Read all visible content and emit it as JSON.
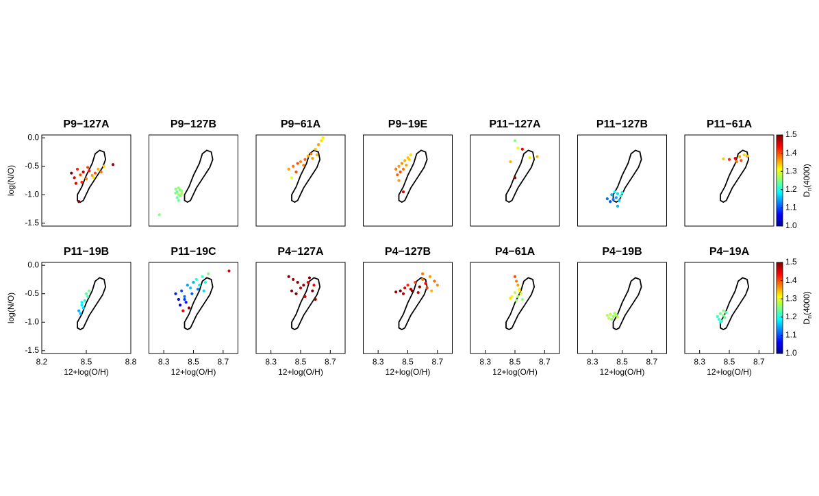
{
  "chart_data": [
    {
      "type": "scatter",
      "title": "P9−127A",
      "ylabel": "log(N/O)",
      "xlim": [
        8.2,
        8.8
      ],
      "ylim": [
        -1.55,
        0.05
      ],
      "yticks": [
        {
          "value": 0,
          "label": "0.0"
        },
        -0.5,
        {
          "value": -1,
          "label": "-1.0"
        },
        -1.5
      ],
      "x": [
        8.4,
        8.42,
        8.44,
        8.46,
        8.48,
        8.5,
        8.52,
        8.54,
        8.56,
        8.58,
        8.6,
        8.62,
        8.45,
        8.47,
        8.55,
        8.68,
        8.43,
        8.51
      ],
      "y": [
        -0.62,
        -0.7,
        -0.55,
        -0.65,
        -0.6,
        -0.72,
        -0.58,
        -0.66,
        -0.62,
        -0.55,
        -0.6,
        -0.5,
        -1.12,
        -0.78,
        -0.7,
        -0.47,
        -0.8,
        -0.52
      ],
      "c": [
        1.5,
        1.45,
        1.42,
        1.4,
        1.47,
        1.38,
        1.43,
        1.36,
        1.4,
        1.35,
        1.38,
        1.33,
        1.5,
        1.42,
        1.33,
        1.48,
        1.45,
        1.4
      ],
      "contour": {
        "x": [
          8.44,
          8.46,
          8.48,
          8.52,
          8.57,
          8.61,
          8.63,
          8.62,
          8.59,
          8.56,
          8.54,
          8.5,
          8.47,
          8.44
        ],
        "y": [
          -1.1,
          -1.13,
          -1.1,
          -0.88,
          -0.68,
          -0.52,
          -0.38,
          -0.25,
          -0.22,
          -0.28,
          -0.45,
          -0.66,
          -0.86,
          -1.0
        ]
      }
    },
    {
      "type": "scatter",
      "title": "P9−127B",
      "xlim": [
        8.2,
        8.8
      ],
      "ylim": [
        -1.55,
        0.05
      ],
      "x": [
        8.38,
        8.39,
        8.4,
        8.41,
        8.42,
        8.39,
        8.4,
        8.41,
        8.38,
        8.42,
        8.4,
        8.27
      ],
      "y": [
        -0.9,
        -0.95,
        -1.0,
        -0.92,
        -0.98,
        -1.05,
        -0.88,
        -1.02,
        -0.97,
        -0.93,
        -1.1,
        -1.35
      ],
      "c": [
        1.25,
        1.24,
        1.26,
        1.25,
        1.27,
        1.24,
        1.26,
        1.25,
        1.25,
        1.26,
        1.24,
        1.25
      ],
      "contour": {
        "x": [
          8.44,
          8.46,
          8.48,
          8.52,
          8.57,
          8.61,
          8.63,
          8.62,
          8.59,
          8.56,
          8.54,
          8.5,
          8.47,
          8.44
        ],
        "y": [
          -1.1,
          -1.13,
          -1.1,
          -0.88,
          -0.68,
          -0.52,
          -0.38,
          -0.25,
          -0.22,
          -0.28,
          -0.45,
          -0.66,
          -0.86,
          -1.0
        ]
      }
    },
    {
      "type": "scatter",
      "title": "P9−61A",
      "xlim": [
        8.2,
        8.8
      ],
      "ylim": [
        -1.55,
        0.05
      ],
      "x": [
        8.42,
        8.45,
        8.48,
        8.5,
        8.53,
        8.55,
        8.57,
        8.6,
        8.62,
        8.64,
        8.65,
        8.47,
        8.52,
        8.58,
        8.44,
        8.61
      ],
      "y": [
        -0.55,
        -0.5,
        -0.45,
        -0.42,
        -0.38,
        -0.32,
        -0.28,
        -0.2,
        -0.12,
        -0.05,
        0.0,
        -0.6,
        -0.48,
        -0.36,
        -0.7,
        -0.3
      ],
      "c": [
        1.36,
        1.38,
        1.4,
        1.37,
        1.39,
        1.35,
        1.38,
        1.34,
        1.36,
        1.33,
        1.32,
        1.4,
        1.37,
        1.36,
        1.3,
        1.35
      ],
      "contour": {
        "x": [
          8.44,
          8.46,
          8.48,
          8.52,
          8.57,
          8.61,
          8.63,
          8.62,
          8.59,
          8.56,
          8.54,
          8.5,
          8.47,
          8.44
        ],
        "y": [
          -1.1,
          -1.13,
          -1.1,
          -0.88,
          -0.68,
          -0.52,
          -0.38,
          -0.25,
          -0.22,
          -0.28,
          -0.45,
          -0.66,
          -0.86,
          -1.0
        ]
      }
    },
    {
      "type": "scatter",
      "title": "P9−19E",
      "xlim": [
        8.2,
        8.8
      ],
      "ylim": [
        -1.55,
        0.05
      ],
      "x": [
        8.42,
        8.44,
        8.46,
        8.48,
        8.5,
        8.52,
        8.45,
        8.47,
        8.49,
        8.43,
        8.51,
        8.47,
        8.44
      ],
      "y": [
        -0.55,
        -0.5,
        -0.45,
        -0.4,
        -0.35,
        -0.3,
        -0.6,
        -0.55,
        -0.48,
        -0.65,
        -0.38,
        -0.95,
        -0.75
      ],
      "c": [
        1.38,
        1.36,
        1.37,
        1.35,
        1.34,
        1.33,
        1.4,
        1.38,
        1.36,
        1.39,
        1.34,
        1.45,
        1.36
      ],
      "contour": {
        "x": [
          8.44,
          8.46,
          8.48,
          8.52,
          8.57,
          8.61,
          8.63,
          8.62,
          8.59,
          8.56,
          8.54,
          8.5,
          8.47,
          8.44
        ],
        "y": [
          -1.1,
          -1.13,
          -1.1,
          -0.88,
          -0.68,
          -0.52,
          -0.38,
          -0.25,
          -0.22,
          -0.28,
          -0.45,
          -0.66,
          -0.86,
          -1.0
        ]
      }
    },
    {
      "type": "scatter",
      "title": "P11−127A",
      "xlim": [
        8.2,
        8.8
      ],
      "ylim": [
        -1.55,
        0.05
      ],
      "x": [
        8.5,
        8.55,
        8.65,
        8.47,
        8.5,
        8.6,
        8.52
      ],
      "y": [
        -0.05,
        -0.2,
        -0.33,
        -0.42,
        -0.7,
        -0.35,
        -0.18
      ],
      "c": [
        1.25,
        1.45,
        1.35,
        1.35,
        1.5,
        1.32,
        1.3
      ],
      "contour": {
        "x": [
          8.44,
          8.46,
          8.48,
          8.52,
          8.57,
          8.61,
          8.63,
          8.62,
          8.59,
          8.56,
          8.54,
          8.5,
          8.47,
          8.44
        ],
        "y": [
          -1.1,
          -1.13,
          -1.1,
          -0.88,
          -0.68,
          -0.52,
          -0.38,
          -0.25,
          -0.22,
          -0.28,
          -0.45,
          -0.66,
          -0.86,
          -1.0
        ]
      }
    },
    {
      "type": "scatter",
      "title": "P11−127B",
      "xlim": [
        8.2,
        8.8
      ],
      "ylim": [
        -1.55,
        0.05
      ],
      "x": [
        8.43,
        8.45,
        8.47,
        8.49,
        8.5,
        8.44,
        8.46,
        8.48,
        8.42,
        8.47,
        8.4
      ],
      "y": [
        -1.0,
        -0.95,
        -0.98,
        -1.02,
        -0.96,
        -1.08,
        -1.05,
        -1.1,
        -1.12,
        -1.2,
        -1.07
      ],
      "c": [
        1.15,
        1.18,
        1.17,
        1.2,
        1.19,
        1.12,
        1.14,
        1.16,
        1.1,
        1.15,
        1.12
      ],
      "contour": {
        "x": [
          8.44,
          8.46,
          8.48,
          8.52,
          8.57,
          8.61,
          8.63,
          8.62,
          8.59,
          8.56,
          8.54,
          8.5,
          8.47,
          8.44
        ],
        "y": [
          -1.1,
          -1.13,
          -1.1,
          -0.88,
          -0.68,
          -0.52,
          -0.38,
          -0.25,
          -0.22,
          -0.28,
          -0.45,
          -0.66,
          -0.86,
          -1.0
        ]
      }
    },
    {
      "type": "scatter",
      "title": "P11−61A",
      "xlim": [
        8.2,
        8.8
      ],
      "ylim": [
        -1.55,
        0.05
      ],
      "colorbar": {
        "label": "D",
        "label_sub": "n",
        "label_suffix": "(4000)",
        "lim": [
          1.0,
          1.5
        ],
        "ticks": [
          {
            "value": 1,
            "label": "1.0"
          },
          1.1,
          1.2,
          1.3,
          1.4,
          1.5
        ]
      },
      "x": [
        8.5,
        8.54,
        8.57,
        8.6,
        8.62,
        8.58,
        8.55,
        8.46
      ],
      "y": [
        -0.38,
        -0.36,
        -0.33,
        -0.3,
        -0.32,
        -0.4,
        -0.42,
        -0.37
      ],
      "c": [
        1.42,
        1.45,
        1.36,
        1.33,
        1.35,
        1.4,
        1.38,
        1.34
      ],
      "contour": {
        "x": [
          8.44,
          8.46,
          8.48,
          8.52,
          8.57,
          8.61,
          8.63,
          8.62,
          8.59,
          8.56,
          8.54,
          8.5,
          8.47,
          8.44
        ],
        "y": [
          -1.1,
          -1.13,
          -1.1,
          -0.88,
          -0.68,
          -0.52,
          -0.38,
          -0.25,
          -0.22,
          -0.28,
          -0.45,
          -0.66,
          -0.86,
          -1.0
        ]
      }
    },
    {
      "type": "scatter",
      "title": "P11−19B",
      "ylabel": "log(N/O)",
      "xlabel": "12+log(O/H)",
      "xlim": [
        8.2,
        8.8
      ],
      "ylim": [
        -1.55,
        0.05
      ],
      "xticks": [
        8.2,
        8.5,
        8.8
      ],
      "yticks": [
        {
          "value": 0,
          "label": "0.0"
        },
        -0.5,
        {
          "value": -1,
          "label": "-1.0"
        },
        -1.5
      ],
      "x": [
        8.45,
        8.47,
        8.49,
        8.51,
        8.48,
        8.46,
        8.5,
        8.47,
        8.52
      ],
      "y": [
        -0.8,
        -0.7,
        -0.62,
        -0.55,
        -0.75,
        -0.85,
        -0.5,
        -0.65,
        -0.45
      ],
      "c": [
        1.15,
        1.18,
        1.2,
        1.22,
        1.17,
        1.16,
        1.23,
        1.19,
        1.24
      ],
      "contour": {
        "x": [
          8.44,
          8.46,
          8.48,
          8.52,
          8.57,
          8.61,
          8.63,
          8.62,
          8.59,
          8.56,
          8.54,
          8.5,
          8.47,
          8.44
        ],
        "y": [
          -1.1,
          -1.13,
          -1.1,
          -0.88,
          -0.68,
          -0.52,
          -0.38,
          -0.25,
          -0.22,
          -0.28,
          -0.45,
          -0.66,
          -0.86,
          -1.0
        ]
      }
    },
    {
      "type": "scatter",
      "title": "P11−19C",
      "xlabel": "12+log(O/H)",
      "xlim": [
        8.2,
        8.8
      ],
      "ylim": [
        -1.55,
        0.05
      ],
      "xticks": [
        8.3,
        8.5,
        8.7
      ],
      "x": [
        8.38,
        8.4,
        8.42,
        8.44,
        8.46,
        8.48,
        8.5,
        8.52,
        8.54,
        8.56,
        8.58,
        8.6,
        8.41,
        8.45,
        8.49,
        8.53,
        8.43,
        8.47,
        8.74,
        8.44,
        8.57
      ],
      "y": [
        -0.5,
        -0.6,
        -0.45,
        -0.55,
        -0.35,
        -0.4,
        -0.3,
        -0.25,
        -0.35,
        -0.2,
        -0.3,
        -0.15,
        -0.7,
        -0.65,
        -0.5,
        -0.42,
        -0.8,
        -0.75,
        -0.1,
        -0.6,
        -0.45
      ],
      "c": [
        1.08,
        1.06,
        1.1,
        1.12,
        1.14,
        1.16,
        1.15,
        1.2,
        1.18,
        1.22,
        1.2,
        1.25,
        1.05,
        1.07,
        1.11,
        1.13,
        1.45,
        1.5,
        1.45,
        1.09,
        1.17
      ],
      "contour": {
        "x": [
          8.44,
          8.46,
          8.48,
          8.52,
          8.57,
          8.61,
          8.63,
          8.62,
          8.59,
          8.56,
          8.54,
          8.5,
          8.47,
          8.44
        ],
        "y": [
          -1.1,
          -1.13,
          -1.1,
          -0.88,
          -0.68,
          -0.52,
          -0.38,
          -0.25,
          -0.22,
          -0.28,
          -0.45,
          -0.66,
          -0.86,
          -1.0
        ]
      }
    },
    {
      "type": "scatter",
      "title": "P4−127A",
      "xlabel": "12+log(O/H)",
      "xlim": [
        8.2,
        8.8
      ],
      "ylim": [
        -1.55,
        0.05
      ],
      "xticks": [
        8.3,
        8.5,
        8.7
      ],
      "x": [
        8.42,
        8.45,
        8.48,
        8.5,
        8.52,
        8.55,
        8.58,
        8.6,
        8.47,
        8.53,
        8.56,
        8.44,
        8.59
      ],
      "y": [
        -0.2,
        -0.25,
        -0.3,
        -0.4,
        -0.35,
        -0.3,
        -0.45,
        -0.6,
        -0.5,
        -0.55,
        -0.22,
        -0.45,
        -0.35
      ],
      "c": [
        1.5,
        1.48,
        1.5,
        1.47,
        1.49,
        1.45,
        1.5,
        1.48,
        1.5,
        1.46,
        1.5,
        1.49,
        1.44
      ],
      "contour": {
        "x": [
          8.44,
          8.46,
          8.48,
          8.52,
          8.57,
          8.61,
          8.63,
          8.62,
          8.59,
          8.56,
          8.54,
          8.5,
          8.47,
          8.44
        ],
        "y": [
          -1.1,
          -1.13,
          -1.1,
          -0.88,
          -0.68,
          -0.52,
          -0.38,
          -0.25,
          -0.22,
          -0.28,
          -0.45,
          -0.66,
          -0.86,
          -1.0
        ]
      }
    },
    {
      "type": "scatter",
      "title": "P4−127B",
      "xlabel": "12+log(O/H)",
      "xlim": [
        8.2,
        8.8
      ],
      "ylim": [
        -1.55,
        0.05
      ],
      "xticks": [
        8.3,
        8.5,
        8.7
      ],
      "x": [
        8.45,
        8.48,
        8.5,
        8.52,
        8.55,
        8.58,
        8.6,
        8.62,
        8.65,
        8.68,
        8.7,
        8.47,
        8.53,
        8.57,
        8.63,
        8.42,
        8.6,
        8.66
      ],
      "y": [
        -0.45,
        -0.4,
        -0.35,
        -0.42,
        -0.3,
        -0.38,
        -0.25,
        -0.32,
        -0.2,
        -0.28,
        -0.35,
        -0.5,
        -0.45,
        -0.48,
        -0.4,
        -0.47,
        -0.15,
        -0.45
      ],
      "c": [
        1.5,
        1.45,
        1.42,
        1.48,
        1.4,
        1.5,
        1.38,
        1.44,
        1.36,
        1.39,
        1.37,
        1.47,
        1.5,
        1.46,
        1.41,
        1.48,
        1.38,
        1.35
      ],
      "contour": {
        "x": [
          8.44,
          8.46,
          8.48,
          8.52,
          8.57,
          8.61,
          8.63,
          8.62,
          8.59,
          8.56,
          8.54,
          8.5,
          8.47,
          8.44
        ],
        "y": [
          -1.1,
          -1.13,
          -1.1,
          -0.88,
          -0.68,
          -0.52,
          -0.38,
          -0.25,
          -0.22,
          -0.28,
          -0.45,
          -0.66,
          -0.86,
          -1.0
        ]
      }
    },
    {
      "type": "scatter",
      "title": "P4−61A",
      "xlabel": "12+log(O/H)",
      "xlim": [
        8.2,
        8.8
      ],
      "ylim": [
        -1.55,
        0.05
      ],
      "xticks": [
        8.3,
        8.5,
        8.7
      ],
      "x": [
        8.5,
        8.51,
        8.52,
        8.53,
        8.5,
        8.52,
        8.54,
        8.55,
        8.48,
        8.51,
        8.53,
        8.47
      ],
      "y": [
        -0.2,
        -0.28,
        -0.35,
        -0.42,
        -0.48,
        -0.55,
        -0.5,
        -0.6,
        -0.55,
        -0.62,
        -0.45,
        -0.58
      ],
      "c": [
        1.4,
        1.38,
        1.36,
        1.32,
        1.28,
        1.27,
        1.29,
        1.26,
        1.3,
        1.27,
        1.31,
        1.33
      ],
      "contour": {
        "x": [
          8.44,
          8.46,
          8.48,
          8.52,
          8.57,
          8.61,
          8.63,
          8.62,
          8.59,
          8.56,
          8.54,
          8.5,
          8.47,
          8.44
        ],
        "y": [
          -1.1,
          -1.13,
          -1.1,
          -0.88,
          -0.68,
          -0.52,
          -0.38,
          -0.25,
          -0.22,
          -0.28,
          -0.45,
          -0.66,
          -0.86,
          -1.0
        ]
      }
    },
    {
      "type": "scatter",
      "title": "P4−19B",
      "xlabel": "12+log(O/H)",
      "xlim": [
        8.2,
        8.8
      ],
      "ylim": [
        -1.55,
        0.05
      ],
      "xticks": [
        8.3,
        8.5,
        8.7
      ],
      "x": [
        8.4,
        8.42,
        8.44,
        8.46,
        8.41,
        8.43,
        8.45,
        8.47
      ],
      "y": [
        -0.88,
        -0.86,
        -0.9,
        -0.87,
        -0.93,
        -0.95,
        -0.84,
        -0.91
      ],
      "c": [
        1.27,
        1.28,
        1.26,
        1.27,
        1.28,
        1.26,
        1.27,
        1.28
      ],
      "contour": {
        "x": [
          8.44,
          8.46,
          8.48,
          8.52,
          8.57,
          8.61,
          8.63,
          8.62,
          8.59,
          8.56,
          8.54,
          8.5,
          8.47,
          8.44
        ],
        "y": [
          -1.1,
          -1.13,
          -1.1,
          -0.88,
          -0.68,
          -0.52,
          -0.38,
          -0.25,
          -0.22,
          -0.28,
          -0.45,
          -0.66,
          -0.86,
          -1.0
        ]
      }
    },
    {
      "type": "scatter",
      "title": "P4−19A",
      "xlabel": "12+log(O/H)",
      "xlim": [
        8.2,
        8.8
      ],
      "ylim": [
        -1.55,
        0.05
      ],
      "xticks": [
        8.3,
        8.5,
        8.7
      ],
      "colorbar": {
        "label": "D",
        "label_sub": "n",
        "label_suffix": "(4000)",
        "lim": [
          1.0,
          1.5
        ],
        "ticks": [
          {
            "value": 1,
            "label": "1.0"
          },
          1.1,
          1.2,
          1.3,
          1.4,
          1.5
        ]
      },
      "x": [
        8.42,
        8.44,
        8.46,
        8.48,
        8.43,
        8.45,
        8.47,
        8.44,
        8.46
      ],
      "y": [
        -0.9,
        -0.85,
        -0.88,
        -0.83,
        -0.95,
        -0.98,
        -0.92,
        -1.0,
        -0.8
      ],
      "c": [
        1.22,
        1.24,
        1.25,
        1.23,
        1.21,
        1.22,
        1.24,
        1.2,
        1.25
      ],
      "contour": {
        "x": [
          8.44,
          8.46,
          8.48,
          8.52,
          8.57,
          8.61,
          8.63,
          8.62,
          8.59,
          8.56,
          8.54,
          8.5,
          8.47,
          8.44
        ],
        "y": [
          -1.1,
          -1.13,
          -1.1,
          -0.88,
          -0.68,
          -0.52,
          -0.38,
          -0.25,
          -0.22,
          -0.28,
          -0.45,
          -0.66,
          -0.86,
          -1.0
        ]
      }
    }
  ]
}
